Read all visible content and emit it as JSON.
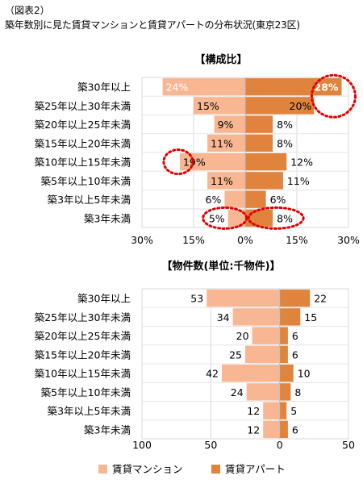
{
  "figure": {
    "caption": "（図表2）",
    "subtitle": "築年数別に見た賃貸マンションと賃貸アパートの分布状況(東京23区)"
  },
  "legend": {
    "items": [
      {
        "label": "賃貸マンション",
        "color": "#F8B792"
      },
      {
        "label": "賃貸アパート",
        "color": "#E0833C"
      }
    ]
  },
  "chart_data": [
    {
      "type": "bar",
      "orientation": "horizontal-diverging",
      "title": "【構成比】",
      "categories": [
        "築30年以上",
        "築25年以上30年未満",
        "築20年以上25年未満",
        "築15年以上20年未満",
        "築10年以上15年未満",
        "築5年以上10年未満",
        "築3年以上5年未満",
        "築3年未満"
      ],
      "series": [
        {
          "name": "賃貸マンション",
          "side": "left",
          "color": "#F8B792",
          "values": [
            24,
            15,
            9,
            11,
            19,
            11,
            6,
            5
          ],
          "labels": [
            "24%",
            "15%",
            "9%",
            "11%",
            "19%",
            "11%",
            "6%",
            "5%"
          ]
        },
        {
          "name": "賃貸アパート",
          "side": "right",
          "color": "#E0833C",
          "values": [
            28,
            20,
            8,
            8,
            12,
            11,
            6,
            8
          ],
          "labels": [
            "28%",
            "20%",
            "8%",
            "8%",
            "12%",
            "11%",
            "6%",
            "8%"
          ]
        }
      ],
      "xlim": [
        -30,
        30
      ],
      "ticks": [
        -30,
        -15,
        0,
        15,
        30
      ],
      "tick_labels": [
        "30%",
        "15%",
        "0%",
        "15%",
        "30%"
      ],
      "highlights": [
        {
          "series": 1,
          "index": 0
        },
        {
          "series": 1,
          "index": 1
        },
        {
          "series": 0,
          "index": 4
        },
        {
          "series": 0,
          "index": 7
        },
        {
          "series": 1,
          "index": 7
        }
      ]
    },
    {
      "type": "bar",
      "orientation": "horizontal-diverging",
      "title": "【物件数(単位:千物件)】",
      "categories": [
        "築30年以上",
        "築25年以上30年未満",
        "築20年以上25年未満",
        "築15年以上20年未満",
        "築10年以上15年未満",
        "築5年以上10年未満",
        "築3年以上5年未満",
        "築3年未満"
      ],
      "series": [
        {
          "name": "賃貸マンション",
          "side": "left",
          "color": "#F8B792",
          "values": [
            53,
            34,
            20,
            25,
            42,
            24,
            12,
            12
          ],
          "labels": [
            "53",
            "34",
            "20",
            "25",
            "42",
            "24",
            "12",
            "12"
          ]
        },
        {
          "name": "賃貸アパート",
          "side": "right",
          "color": "#E0833C",
          "values": [
            22,
            15,
            6,
            6,
            10,
            8,
            5,
            6
          ],
          "labels": [
            "22",
            "15",
            "6",
            "6",
            "10",
            "8",
            "5",
            "6"
          ]
        }
      ],
      "xlim": [
        -100,
        50
      ],
      "ticks": [
        -100,
        -50,
        0,
        50
      ],
      "tick_labels": [
        "100",
        "50",
        "0",
        "50"
      ]
    }
  ]
}
